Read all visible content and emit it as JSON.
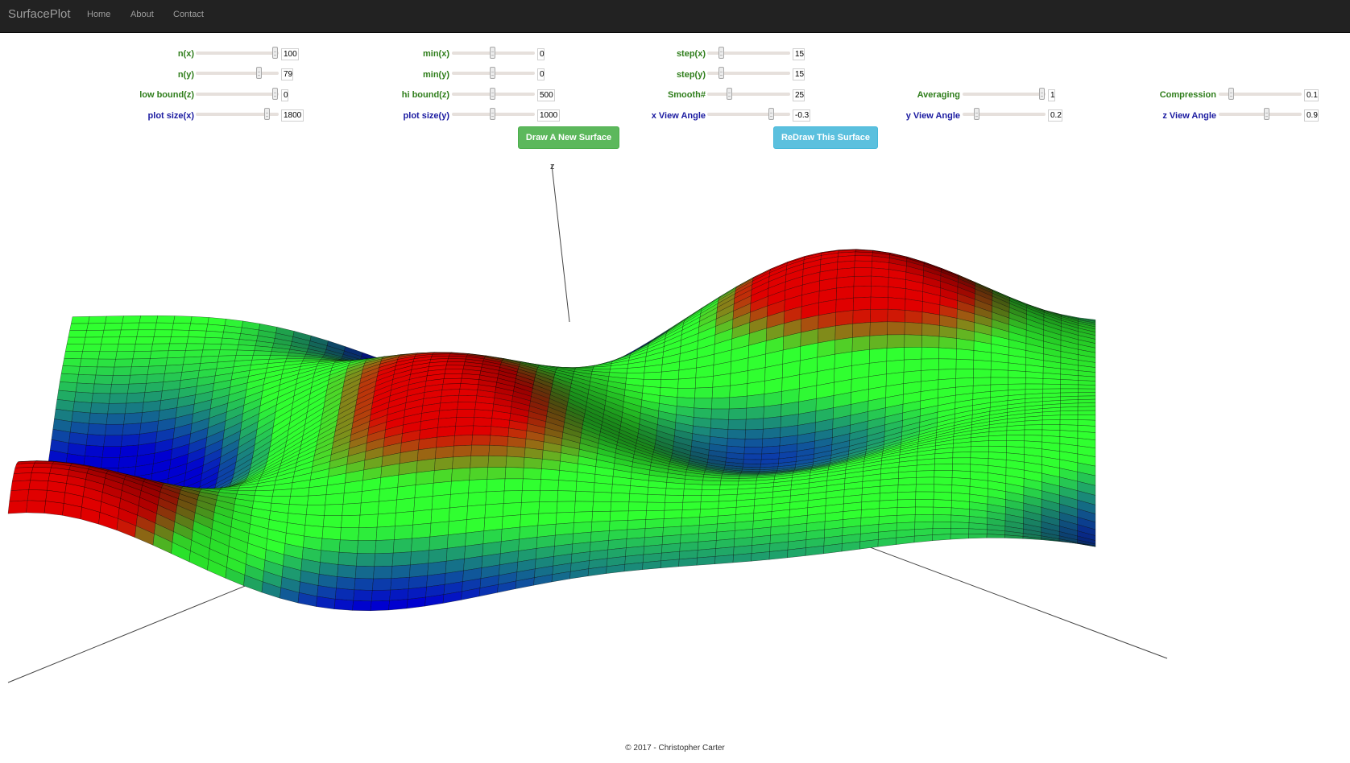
{
  "navbar": {
    "brand": "SurfacePlot",
    "links": [
      "Home",
      "About",
      "Contact"
    ]
  },
  "controls": {
    "nx": {
      "label": "n(x)",
      "value": "100"
    },
    "ny": {
      "label": "n(y)",
      "value": "79"
    },
    "low_bound_z": {
      "label": "low bound(z)",
      "value": "0"
    },
    "plot_size_x": {
      "label": "plot size(x)",
      "value": "1800"
    },
    "min_x": {
      "label": "min(x)",
      "value": "0"
    },
    "min_y": {
      "label": "min(y)",
      "value": "0"
    },
    "hi_bound_z": {
      "label": "hi bound(z)",
      "value": "500"
    },
    "plot_size_y": {
      "label": "plot size(y)",
      "value": "1000"
    },
    "step_x": {
      "label": "step(x)",
      "value": "15"
    },
    "step_y": {
      "label": "step(y)",
      "value": "15"
    },
    "smooth": {
      "label": "Smooth#",
      "value": "25"
    },
    "x_view_angle": {
      "label": "x View Angle",
      "value": "-0.3"
    },
    "averaging": {
      "label": "Averaging",
      "value": "1"
    },
    "y_view_angle": {
      "label": "y View Angle",
      "value": "0.2"
    },
    "compression": {
      "label": "Compression",
      "value": "0.1"
    },
    "z_view_angle": {
      "label": "z View Angle",
      "value": "0.9"
    }
  },
  "buttons": {
    "draw_new": "Draw A New Surface",
    "redraw": "ReDraw This Surface"
  },
  "plot": {
    "z_axis_label": "z",
    "colors": {
      "high": "#e00000",
      "mid": "#30ff30",
      "low": "#0000d0"
    }
  },
  "footer": "© 2017 - Christopher Carter"
}
